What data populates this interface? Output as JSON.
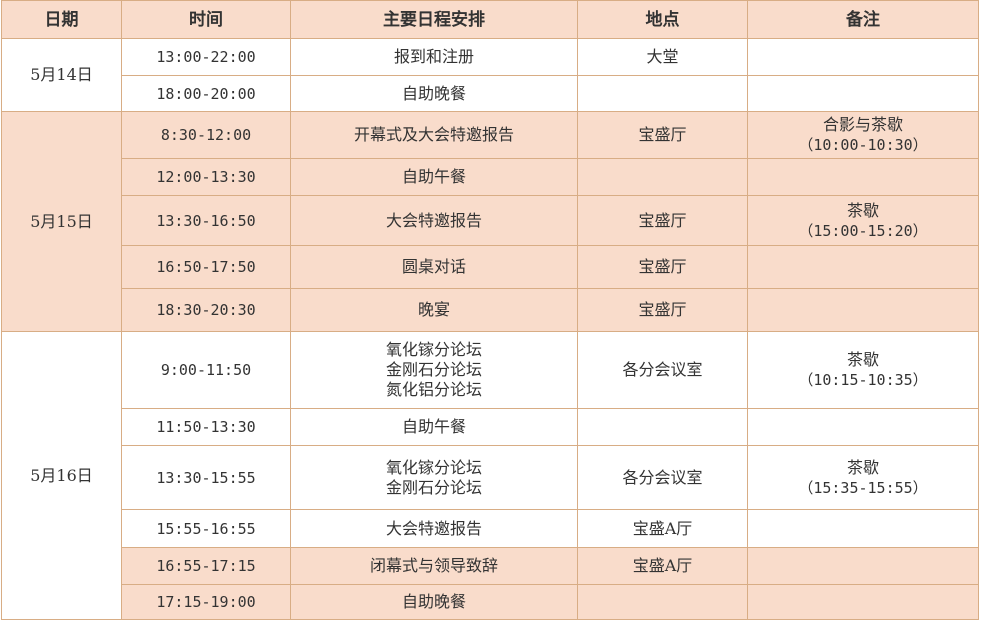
{
  "colors": {
    "header_fill": "#f9dccb",
    "highlight_fill": "#f9dccb",
    "border": "#d8ad85"
  },
  "headers": [
    "日期",
    "时间",
    "主要日程安排",
    "地点",
    "备注"
  ],
  "days": [
    {
      "date": "5月14日",
      "rows": [
        {
          "time": "13:00-22:00",
          "agenda": [
            "报到和注册"
          ],
          "venue": "大堂",
          "note": []
        },
        {
          "time": "18:00-20:00",
          "agenda": [
            "自助晚餐"
          ],
          "venue": "",
          "note": []
        }
      ]
    },
    {
      "date": "5月15日",
      "rows": [
        {
          "time": "8:30-12:00",
          "agenda": [
            "开幕式及大会特邀报告"
          ],
          "venue": "宝盛厅",
          "note": [
            "合影与茶歇",
            "（10:00-10:30）"
          ]
        },
        {
          "time": "12:00-13:30",
          "agenda": [
            "自助午餐"
          ],
          "venue": "",
          "note": []
        },
        {
          "time": "13:30-16:50",
          "agenda": [
            "大会特邀报告"
          ],
          "venue": "宝盛厅",
          "note": [
            "茶歇",
            "（15:00-15:20）"
          ]
        },
        {
          "time": "16:50-17:50",
          "agenda": [
            "圆桌对话"
          ],
          "venue": "宝盛厅",
          "note": []
        },
        {
          "time": "18:30-20:30",
          "agenda": [
            "晚宴"
          ],
          "venue": "宝盛厅",
          "note": []
        }
      ]
    },
    {
      "date": "5月16日",
      "rows": [
        {
          "time": "9:00-11:50",
          "agenda": [
            "氧化镓分论坛",
            "金刚石分论坛",
            "氮化铝分论坛"
          ],
          "venue": "各分会议室",
          "note": [
            "茶歇",
            "（10:15-10:35）"
          ]
        },
        {
          "time": "11:50-13:30",
          "agenda": [
            "自助午餐"
          ],
          "venue": "",
          "note": []
        },
        {
          "time": "13:30-15:55",
          "agenda": [
            "氧化镓分论坛",
            "金刚石分论坛"
          ],
          "venue": "各分会议室",
          "note": [
            "茶歇",
            "（15:35-15:55）"
          ]
        },
        {
          "time": "15:55-16:55",
          "agenda": [
            "大会特邀报告"
          ],
          "venue": "宝盛A厅",
          "note": []
        },
        {
          "time": "16:55-17:15",
          "agenda": [
            "闭幕式与领导致辞"
          ],
          "venue": "宝盛A厅",
          "note": []
        },
        {
          "time": "17:15-19:00",
          "agenda": [
            "自助晚餐"
          ],
          "venue": "",
          "note": []
        }
      ]
    }
  ]
}
